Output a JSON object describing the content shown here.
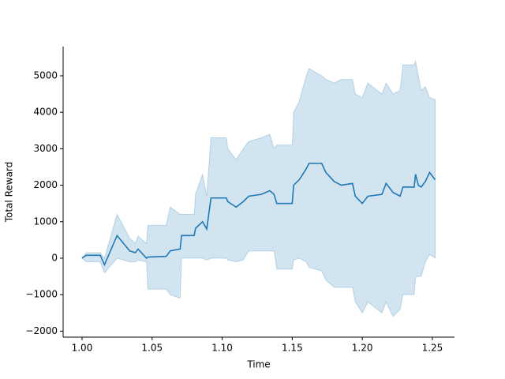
{
  "chart_data": {
    "type": "line",
    "xlabel": "Time",
    "ylabel": "Total Reward",
    "x": [
      1.0,
      1.003,
      1.013,
      1.016,
      1.025,
      1.034,
      1.038,
      1.04,
      1.046,
      1.047,
      1.06,
      1.063,
      1.07,
      1.071,
      1.08,
      1.081,
      1.086,
      1.089,
      1.092,
      1.103,
      1.104,
      1.11,
      1.115,
      1.119,
      1.128,
      1.134,
      1.137,
      1.139,
      1.15,
      1.151,
      1.155,
      1.16,
      1.162,
      1.171,
      1.174,
      1.18,
      1.185,
      1.193,
      1.195,
      1.2,
      1.204,
      1.214,
      1.217,
      1.222,
      1.227,
      1.229,
      1.237,
      1.238,
      1.24,
      1.242,
      1.245,
      1.248,
      1.252
    ],
    "series": [
      {
        "color": "#1f77b4",
        "values": [
          0,
          80,
          80,
          -180,
          620,
          200,
          150,
          250,
          0,
          30,
          50,
          200,
          250,
          620,
          620,
          820,
          1000,
          800,
          1650,
          1650,
          1550,
          1400,
          1550,
          1700,
          1750,
          1850,
          1750,
          1500,
          1500,
          2000,
          2150,
          2450,
          2600,
          2600,
          2350,
          2100,
          2000,
          2050,
          1700,
          1500,
          1700,
          1750,
          2050,
          1800,
          1700,
          1950,
          1950,
          2300,
          2000,
          1950,
          2100,
          2350,
          2150
        ],
        "lower": [
          0,
          -100,
          -100,
          -400,
          0,
          -100,
          -100,
          -50,
          -100,
          -850,
          -850,
          -1000,
          -1100,
          0,
          0,
          0,
          0,
          -50,
          0,
          0,
          -50,
          -100,
          -50,
          200,
          200,
          200,
          200,
          -300,
          -300,
          -50,
          0,
          -100,
          -250,
          -350,
          -600,
          -800,
          -800,
          -800,
          -1200,
          -1500,
          -1200,
          -1500,
          -1200,
          -1600,
          -1400,
          -1000,
          -1000,
          -500,
          -500,
          -500,
          -100,
          100,
          0
        ],
        "upper": [
          0,
          150,
          150,
          0,
          1200,
          550,
          400,
          600,
          400,
          900,
          900,
          1400,
          1200,
          1200,
          1200,
          1750,
          2300,
          1700,
          3300,
          3300,
          3000,
          2700,
          3000,
          3200,
          3300,
          3400,
          3000,
          3100,
          3100,
          4000,
          4300,
          5000,
          5200,
          5000,
          4900,
          4800,
          4900,
          4900,
          4500,
          4400,
          4800,
          4500,
          4800,
          4500,
          4600,
          5300,
          5300,
          5400,
          5000,
          4600,
          4700,
          4400,
          4350
        ]
      }
    ],
    "xlim": [
      0.9865,
      1.2658
    ],
    "ylim": [
      -2165,
      5801
    ],
    "xticks": [
      {
        "value": 1,
        "label": "1.00"
      },
      1.05,
      {
        "value": 1.1,
        "label": "1.10"
      },
      1.15,
      {
        "value": 1.2,
        "label": "1.20"
      },
      1.25
    ],
    "yticks": [
      {
        "value": -2000,
        "label": "−2000"
      },
      {
        "value": -1000,
        "label": "−1000"
      },
      0,
      1000,
      2000,
      3000,
      4000,
      5000
    ],
    "grid": false
  }
}
